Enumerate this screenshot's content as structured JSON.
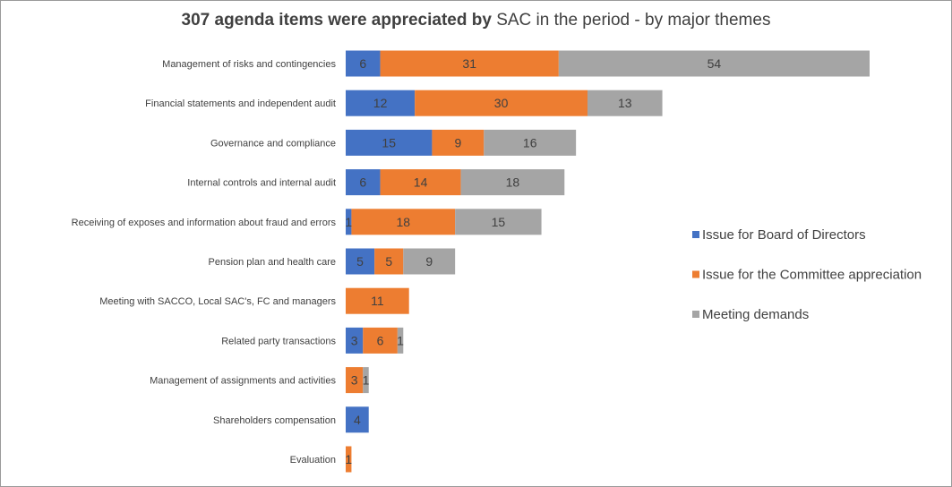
{
  "chart_data": {
    "type": "bar",
    "orientation": "horizontal",
    "stacked": true,
    "title_bold": "307 agenda items were appreciated by",
    "title_normal": " SAC in the period - by major themes",
    "categories": [
      "Management of risks and contingencies",
      "Financial statements and independent audit",
      "Governance and compliance",
      "Internal controls and internal audit",
      "Receiving of exposes and information about fraud and errors",
      "Pension plan and health care",
      "Meeting with SACCO, Local SAC's, FC and managers",
      "Related party transactions",
      "Management of assignments and activities",
      "Shareholders compensation",
      "Evaluation"
    ],
    "series": [
      {
        "name": "Issue for Board of Directors",
        "color": "#4472c4",
        "values": [
          6,
          12,
          15,
          6,
          1,
          5,
          0,
          3,
          0,
          4,
          0
        ]
      },
      {
        "name": "Issue for the Committee appreciation",
        "color": "#ed7d31",
        "values": [
          31,
          30,
          9,
          14,
          18,
          5,
          11,
          6,
          3,
          0,
          1
        ]
      },
      {
        "name": "Meeting demands",
        "color": "#a5a5a5",
        "values": [
          54,
          13,
          16,
          18,
          15,
          9,
          0,
          1,
          1,
          0,
          0
        ]
      }
    ],
    "xlim": [
      0,
      91
    ],
    "grid": false,
    "legend_position": "right"
  }
}
